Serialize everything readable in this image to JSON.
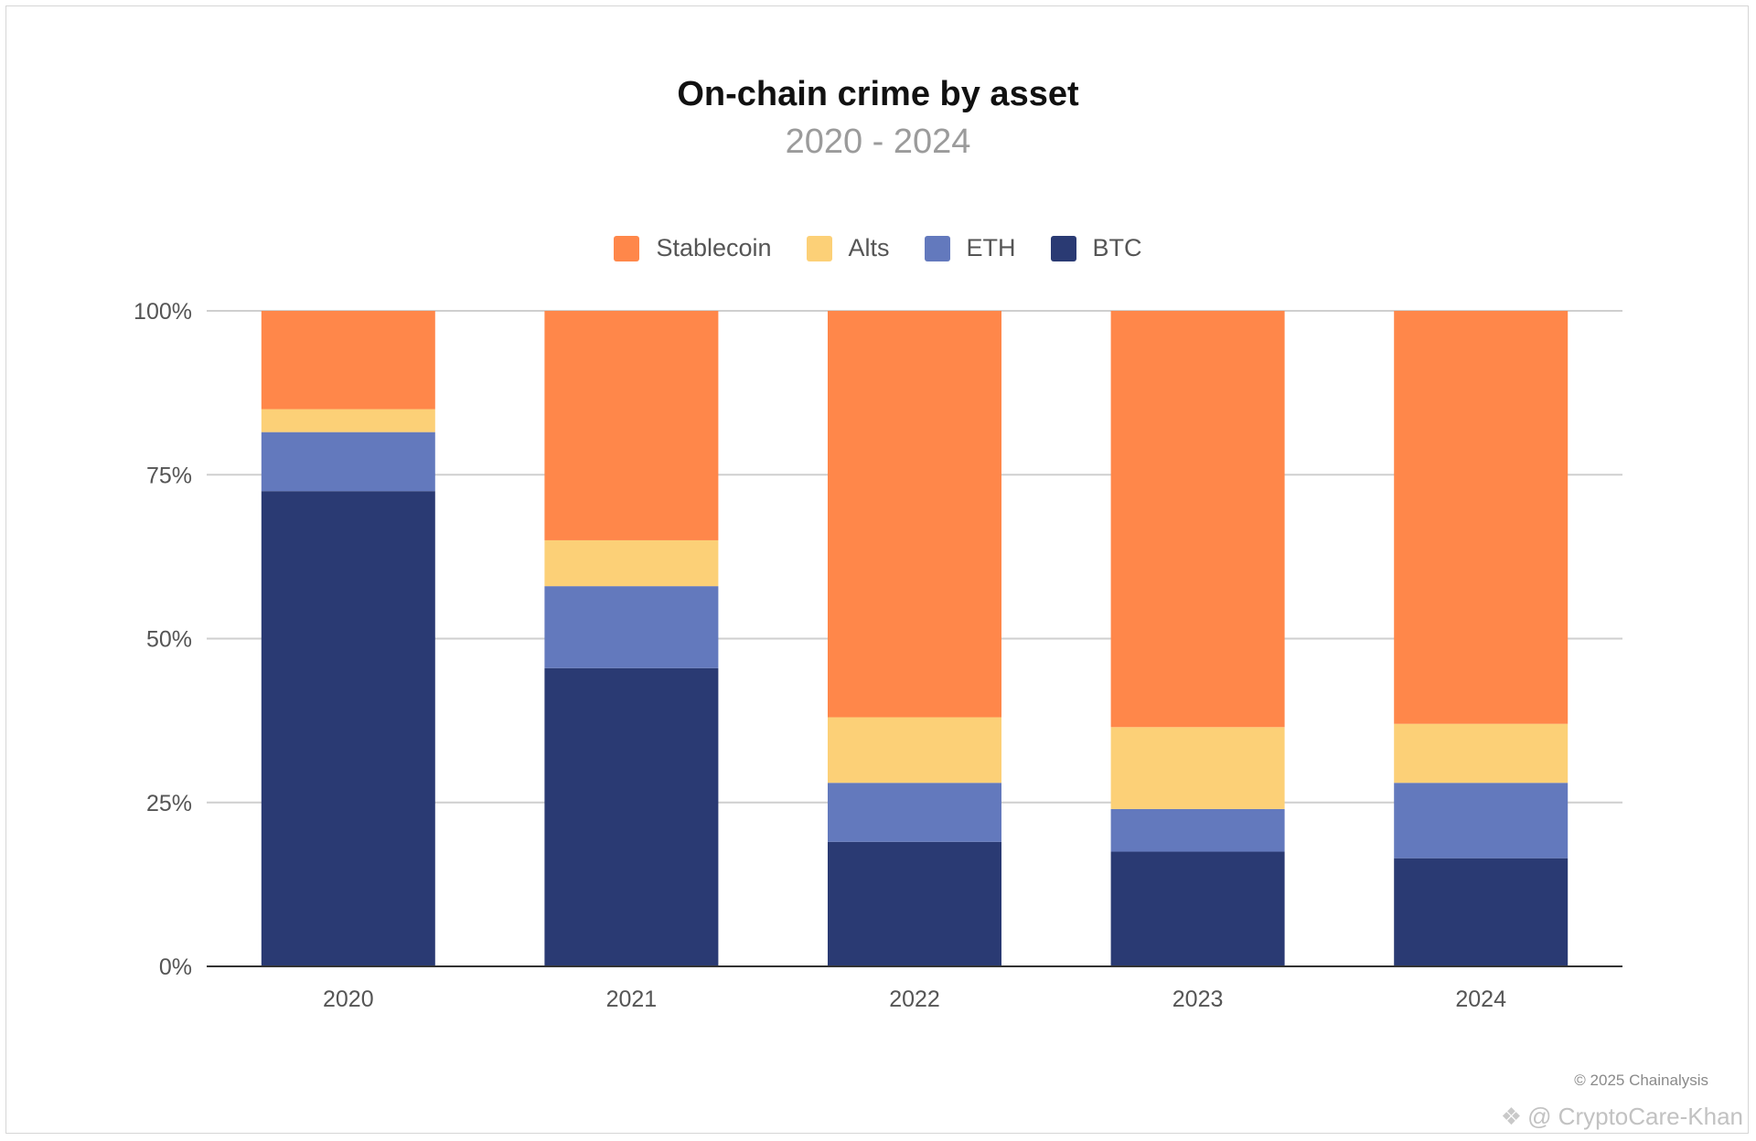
{
  "chart_data": {
    "type": "bar",
    "stacked": true,
    "title": "On-chain crime by asset",
    "subtitle": "2020 - 2024",
    "categories": [
      "2020",
      "2021",
      "2022",
      "2023",
      "2024"
    ],
    "series": [
      {
        "name": "BTC",
        "color": "#2a3a73",
        "values": [
          72.5,
          45.5,
          19.0,
          17.5,
          16.5
        ]
      },
      {
        "name": "ETH",
        "color": "#6379bd",
        "values": [
          9.0,
          12.5,
          9.0,
          6.5,
          11.5
        ]
      },
      {
        "name": "Alts",
        "color": "#fcd077",
        "values": [
          3.5,
          7.0,
          10.0,
          12.5,
          9.0
        ]
      },
      {
        "name": "Stablecoin",
        "color": "#ff874a",
        "values": [
          15.0,
          35.0,
          62.0,
          63.5,
          63.0
        ]
      }
    ],
    "legend_order": [
      "Stablecoin",
      "Alts",
      "ETH",
      "BTC"
    ],
    "ylim": [
      0,
      100
    ],
    "yticks": [
      "0%",
      "25%",
      "50%",
      "75%",
      "100%"
    ],
    "yticks_values": [
      0,
      25,
      50,
      75,
      100
    ],
    "grid": true,
    "legend_position": "top-center"
  },
  "footer": {
    "copyright": "© 2025 Chainalysis",
    "watermark": "@ CryptoCare-Khan",
    "watermark_icon": "binance-icon"
  }
}
